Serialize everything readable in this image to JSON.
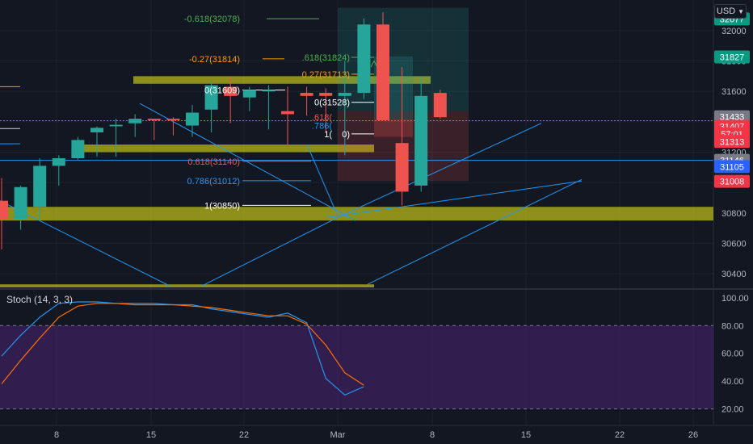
{
  "currency_button": {
    "label": "USD",
    "icon": "chevron-down-icon"
  },
  "colors": {
    "background": "#131722",
    "grid": "#1e222d",
    "bull": "#26a69a",
    "bear": "#ef5350",
    "zone": "#b8b81a",
    "trend": "#2196f3",
    "stoch_k": "#2196f3",
    "stoch_d": "#ff6d00",
    "stoch_band": "#4a2472"
  },
  "chart_data": [
    {
      "type": "candlestick",
      "ylim": [
        30310,
        32180
      ],
      "y_ticks": [
        "32000",
        "31800",
        "31600",
        "31400",
        "31200",
        "31000",
        "30800",
        "30600",
        "30400"
      ],
      "x_ticks": [
        "8",
        "15",
        "22",
        "Mar",
        "8",
        "15",
        "22",
        "26"
      ],
      "candles": [
        {
          "o": 30880,
          "h": 31030,
          "l": 30560,
          "c": 30760
        },
        {
          "o": 30760,
          "h": 30980,
          "l": 30690,
          "c": 30970
        },
        {
          "o": 30840,
          "h": 31160,
          "l": 30760,
          "c": 31110
        },
        {
          "o": 31110,
          "h": 31180,
          "l": 30980,
          "c": 31160
        },
        {
          "o": 31160,
          "h": 31300,
          "l": 31150,
          "c": 31280
        },
        {
          "o": 31330,
          "h": 31370,
          "l": 31170,
          "c": 31360
        },
        {
          "o": 31370,
          "h": 31420,
          "l": 31170,
          "c": 31380
        },
        {
          "o": 31390,
          "h": 31450,
          "l": 31300,
          "c": 31420
        },
        {
          "o": 31420,
          "h": 31410,
          "l": 31280,
          "c": 31410
        },
        {
          "o": 31420,
          "h": 31430,
          "l": 31310,
          "c": 31410
        },
        {
          "o": 31375,
          "h": 31510,
          "l": 31300,
          "c": 31460
        },
        {
          "o": 31480,
          "h": 31670,
          "l": 31330,
          "c": 31640
        },
        {
          "o": 31630,
          "h": 31700,
          "l": 31390,
          "c": 31570
        },
        {
          "o": 31560,
          "h": 31630,
          "l": 31470,
          "c": 31610
        },
        {
          "o": 31600,
          "h": 31640,
          "l": 31350,
          "c": 31610
        },
        {
          "o": 31470,
          "h": 31630,
          "l": 31250,
          "c": 31450
        },
        {
          "o": 31590,
          "h": 31630,
          "l": 31440,
          "c": 31570
        },
        {
          "o": 31590,
          "h": 31620,
          "l": 31330,
          "c": 31570
        },
        {
          "o": 31570,
          "h": 31800,
          "l": 31180,
          "c": 31590
        },
        {
          "o": 31590,
          "h": 32080,
          "l": 31550,
          "c": 32040
        },
        {
          "o": 32040,
          "h": 32120,
          "l": 31410,
          "c": 31410
        },
        {
          "o": 31260,
          "h": 31760,
          "l": 30850,
          "c": 30940
        },
        {
          "o": 30980,
          "h": 31680,
          "l": 30940,
          "c": 31570
        },
        {
          "o": 31590,
          "h": 31610,
          "l": 31420,
          "c": 31430
        }
      ],
      "price_tags": [
        {
          "label": "32077",
          "kind": "bull"
        },
        {
          "label": "31827",
          "kind": "bull"
        },
        {
          "label": "31433",
          "kind": "grey"
        },
        {
          "label": "31407",
          "kind": "bear"
        },
        {
          "label": "57:01",
          "kind": "bear"
        },
        {
          "label": "31313",
          "kind": "bear"
        },
        {
          "label": "31146",
          "kind": "grey"
        },
        {
          "label": "31105",
          "kind": "blue"
        },
        {
          "label": "31008",
          "kind": "bear"
        }
      ],
      "fib_labels": [
        {
          "text": "-0.618(32078)",
          "color": "#4caf50"
        },
        {
          "text": "-0.27(31814)",
          "color": "#ff9800"
        },
        {
          "text": "0(31609)",
          "color": "#ffffff"
        },
        {
          "text": "0.618(31140)",
          "color": "#ef5350"
        },
        {
          "text": "0.786(31012)",
          "color": "#2196f3"
        },
        {
          "text": "1(30850)",
          "color": "#ffffff"
        },
        {
          "text": ".618(31824)",
          "color": "#4caf50"
        },
        {
          "text": "0.27(31713)",
          "color": "#ff9800"
        },
        {
          "text": "0(31528)",
          "color": "#ffffff"
        },
        {
          "text": ".618(",
          "color": "#ef5350"
        },
        {
          "text": ".786(",
          "color": "#2196f3"
        },
        {
          "text": "1(",
          "color": "#ffffff"
        },
        {
          "text": "0)",
          "color": "#ffffff"
        }
      ]
    },
    {
      "type": "line",
      "legend": "Stoch (14, 3, 3)",
      "ylim": [
        11,
        104
      ],
      "y_ticks": [
        "100.00",
        "80.00",
        "60.00",
        "40.00",
        "20.00"
      ],
      "band": [
        20,
        80
      ],
      "series": [
        {
          "name": "%K",
          "values": [
            58,
            73,
            86,
            96,
            97,
            97,
            96,
            96,
            96,
            95,
            95,
            92,
            90,
            88,
            86,
            89,
            82,
            42,
            30,
            36
          ]
        },
        {
          "name": "%D",
          "values": [
            38,
            55,
            71,
            86,
            94,
            96,
            96,
            95,
            95,
            95,
            94,
            93,
            91,
            89,
            87,
            87,
            81,
            66,
            46,
            37
          ]
        }
      ]
    }
  ]
}
